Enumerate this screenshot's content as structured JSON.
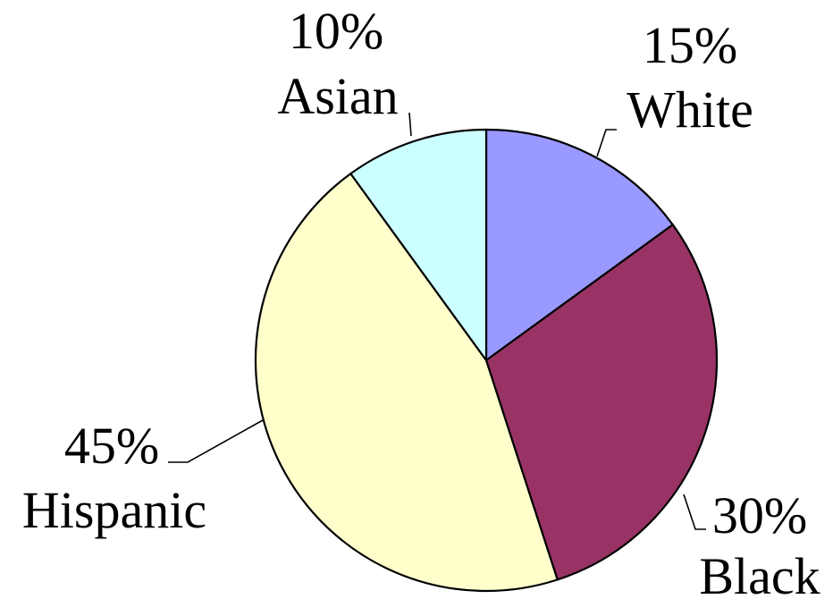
{
  "chart_data": {
    "type": "pie",
    "title": "",
    "start_angle_deg": 0,
    "direction": "clockwise",
    "slices": [
      {
        "name": "White",
        "percent_label": "15%",
        "value": 15,
        "color": "#9999ff"
      },
      {
        "name": "Black",
        "percent_label": "30%",
        "value": 30,
        "color": "#993366"
      },
      {
        "name": "Hispanic",
        "percent_label": "45%",
        "value": 45,
        "color": "#ffffcc"
      },
      {
        "name": "Asian",
        "percent_label": "10%",
        "value": 10,
        "color": "#ccffff"
      }
    ]
  }
}
